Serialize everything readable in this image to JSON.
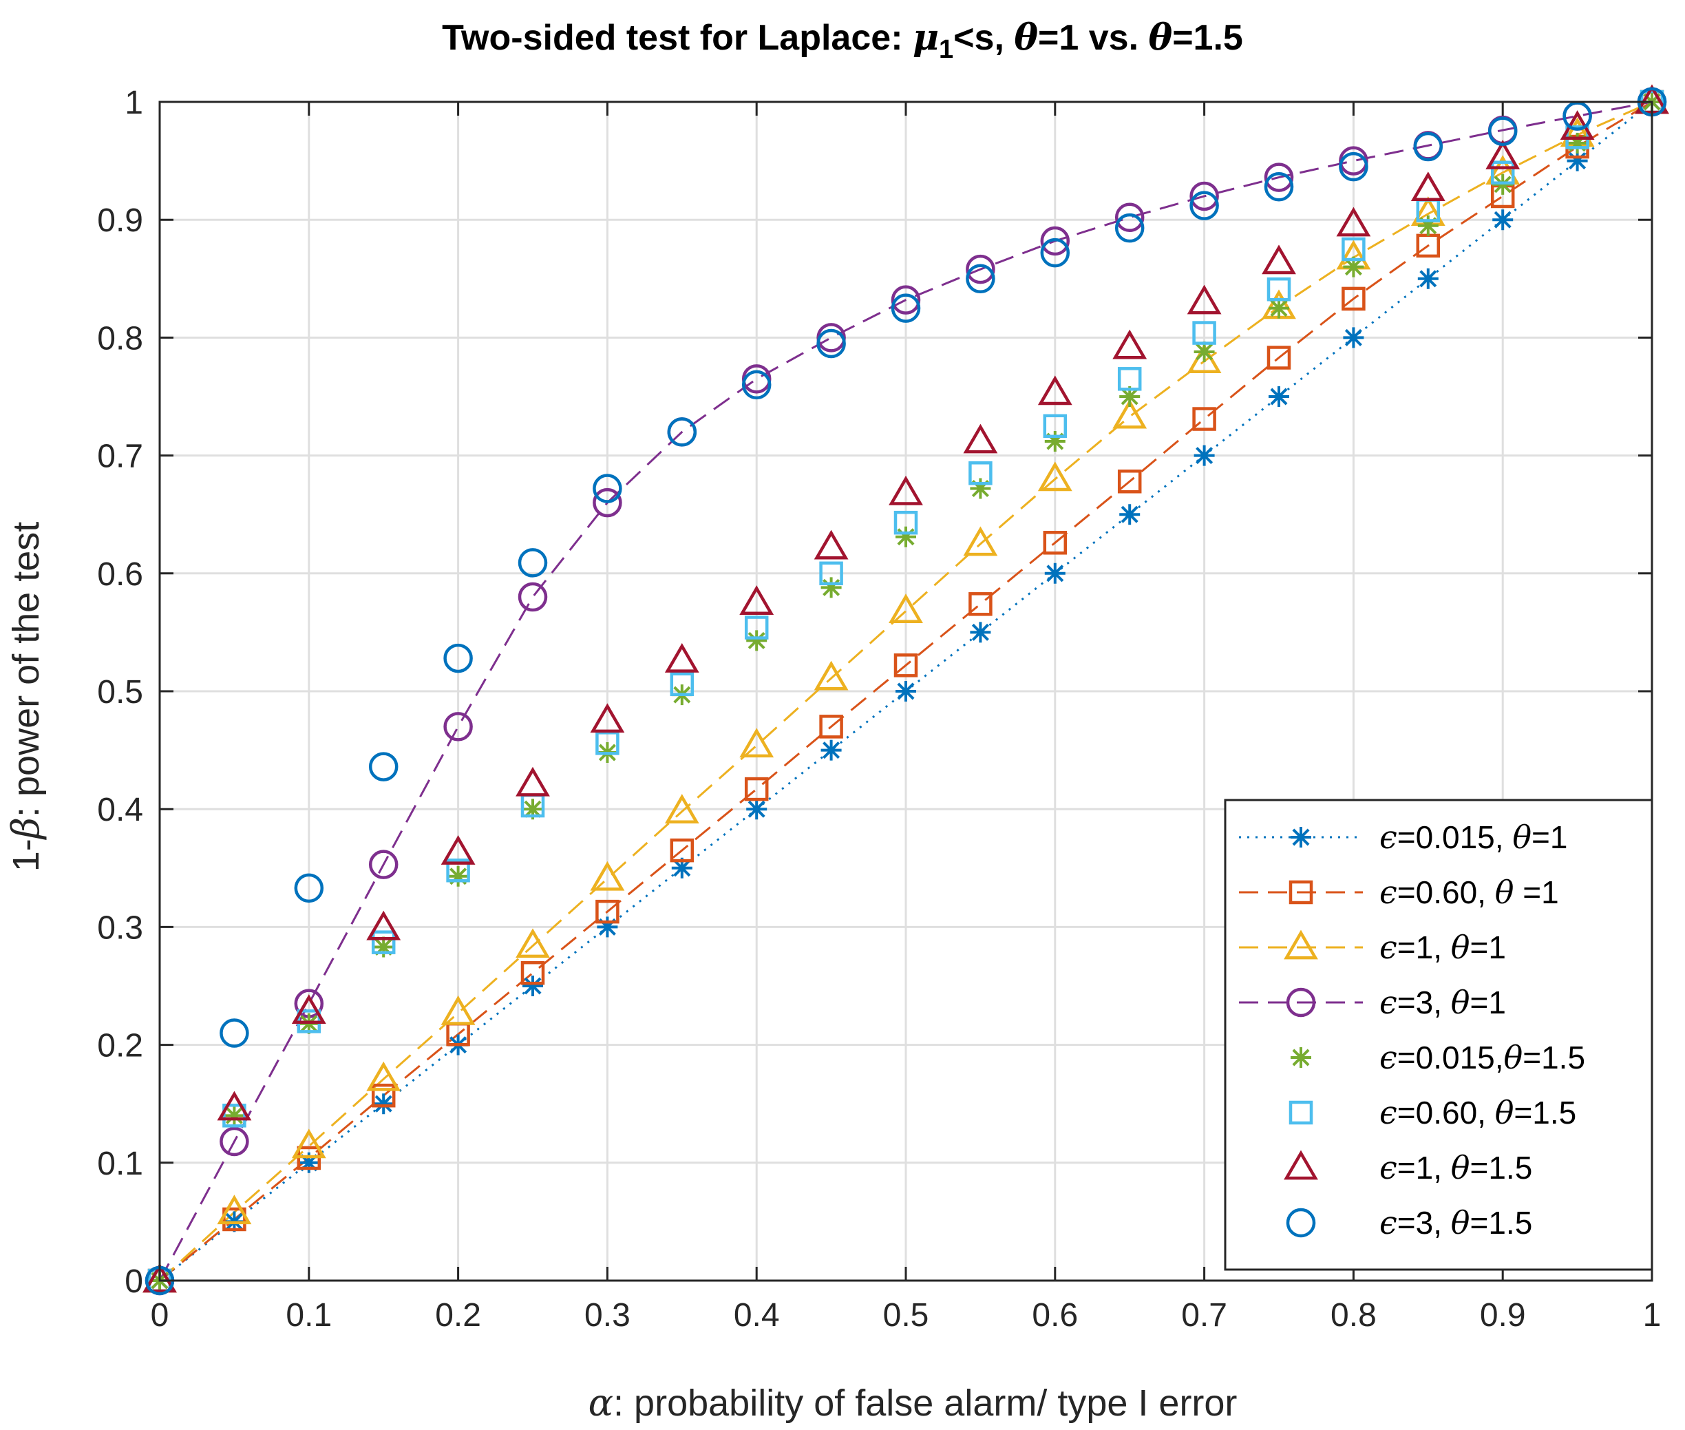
{
  "chart_data": {
    "type": "line",
    "title_prefix": "Two-sided test for Laplace: ",
    "title_mu": "μ",
    "title_sub": "1",
    "title_mid": "<s, ",
    "title_theta1": "θ",
    "title_val1": "=1 vs. ",
    "title_theta2": "θ",
    "title_val2": "=1.5",
    "xlabel_symbol": "α",
    "xlabel_text": ": probability of false alarm/ type I error",
    "ylabel_prefix": "1-",
    "ylabel_symbol": "β",
    "ylabel_text": ": power of the test",
    "xlim": [
      0,
      1
    ],
    "ylim": [
      0,
      1
    ],
    "xticks": [
      0,
      0.1,
      0.2,
      0.3,
      0.4,
      0.5,
      0.6,
      0.7,
      0.8,
      0.9,
      1
    ],
    "xtick_labels": [
      "0",
      "0.1",
      "0.2",
      "0.3",
      "0.4",
      "0.5",
      "0.6",
      "0.7",
      "0.8",
      "0.9",
      "1"
    ],
    "yticks": [
      0,
      0.1,
      0.2,
      0.3,
      0.4,
      0.5,
      0.6,
      0.7,
      0.8,
      0.9,
      1
    ],
    "ytick_labels": [
      "0",
      "0.1",
      "0.2",
      "0.3",
      "0.4",
      "0.5",
      "0.6",
      "0.7",
      "0.8",
      "0.9",
      "1"
    ],
    "grid": true,
    "legend_position": "bottom-right",
    "x": [
      0,
      0.05,
      0.1,
      0.15,
      0.2,
      0.25,
      0.3,
      0.35,
      0.4,
      0.45,
      0.5,
      0.55,
      0.6,
      0.65,
      0.7,
      0.75,
      0.8,
      0.85,
      0.9,
      0.95,
      1
    ],
    "series": [
      {
        "name": "ϵ=0.015, θ=1",
        "legend_parts": [
          "ϵ",
          "=0.015, ",
          "θ",
          "=1"
        ],
        "color": "#0072BD",
        "marker": "asterisk",
        "line": "dotted",
        "values": [
          0,
          0.05,
          0.1,
          0.15,
          0.2,
          0.25,
          0.3,
          0.35,
          0.4,
          0.45,
          0.5,
          0.55,
          0.6,
          0.65,
          0.7,
          0.75,
          0.8,
          0.85,
          0.9,
          0.95,
          1
        ]
      },
      {
        "name": "ϵ=0.60, θ =1",
        "legend_parts": [
          "ϵ",
          "=0.60, ",
          "θ",
          " =1"
        ],
        "color": "#D95319",
        "marker": "square",
        "line": "dashed",
        "values": [
          0,
          0.052,
          0.104,
          0.157,
          0.209,
          0.261,
          0.313,
          0.365,
          0.417,
          0.47,
          0.522,
          0.574,
          0.626,
          0.678,
          0.731,
          0.783,
          0.833,
          0.878,
          0.92,
          0.962,
          1
        ]
      },
      {
        "name": "ϵ=1, θ=1",
        "legend_parts": [
          "ϵ",
          "=1, ",
          "θ",
          "=1"
        ],
        "color": "#EDB120",
        "marker": "triangle",
        "line": "dashed",
        "values": [
          0,
          0.058,
          0.114,
          0.171,
          0.227,
          0.284,
          0.341,
          0.398,
          0.454,
          0.511,
          0.568,
          0.625,
          0.68,
          0.733,
          0.78,
          0.826,
          0.868,
          0.905,
          0.94,
          0.972,
          1
        ]
      },
      {
        "name": "ϵ=3, θ=1",
        "legend_parts": [
          "ϵ",
          "=3, ",
          "θ",
          "=1"
        ],
        "color": "#7E2F8E",
        "marker": "circle",
        "line": "dashed",
        "values": [
          0,
          0.118,
          0.235,
          0.353,
          0.47,
          0.58,
          0.66,
          0.72,
          0.765,
          0.8,
          0.832,
          0.858,
          0.882,
          0.902,
          0.92,
          0.936,
          0.95,
          0.963,
          0.976,
          0.988,
          1
        ]
      },
      {
        "name": "ϵ=0.015, θ=1.5",
        "legend_parts": [
          "ϵ",
          "=0.015,",
          "θ",
          "=1.5"
        ],
        "color": "#77AC30",
        "marker": "asterisk",
        "line": "none",
        "values": [
          0,
          0.14,
          0.218,
          0.283,
          0.343,
          0.4,
          0.448,
          0.497,
          0.543,
          0.588,
          0.631,
          0.672,
          0.712,
          0.75,
          0.788,
          0.825,
          0.86,
          0.895,
          0.93,
          0.965,
          1
        ]
      },
      {
        "name": "ϵ=0.60, θ=1.5",
        "legend_parts": [
          "ϵ",
          "=0.60, ",
          "θ",
          "=1.5"
        ],
        "color": "#4DBEEE",
        "marker": "square",
        "line": "none",
        "values": [
          0,
          0.14,
          0.22,
          0.287,
          0.348,
          0.403,
          0.456,
          0.506,
          0.554,
          0.6,
          0.643,
          0.685,
          0.725,
          0.765,
          0.804,
          0.841,
          0.875,
          0.908,
          0.94,
          0.97,
          1
        ]
      },
      {
        "name": "ϵ=1, θ=1.5",
        "legend_parts": [
          "ϵ",
          "=1, ",
          "θ",
          "=1.5"
        ],
        "color": "#A2142F",
        "marker": "triangle",
        "line": "none",
        "values": [
          0,
          0.146,
          0.228,
          0.299,
          0.363,
          0.421,
          0.475,
          0.526,
          0.575,
          0.622,
          0.668,
          0.712,
          0.753,
          0.792,
          0.83,
          0.864,
          0.896,
          0.926,
          0.953,
          0.978,
          1
        ]
      },
      {
        "name": "ϵ=3, θ=1.5",
        "legend_parts": [
          "ϵ",
          "=3, ",
          "θ",
          "=1.5"
        ],
        "color": "#0072BD",
        "marker": "circle",
        "line": "none",
        "values": [
          0,
          0.21,
          0.333,
          0.436,
          0.528,
          0.609,
          0.672,
          0.72,
          0.76,
          0.795,
          0.825,
          0.85,
          0.872,
          0.893,
          0.912,
          0.928,
          0.945,
          0.962,
          0.975,
          0.988,
          1
        ]
      }
    ]
  }
}
